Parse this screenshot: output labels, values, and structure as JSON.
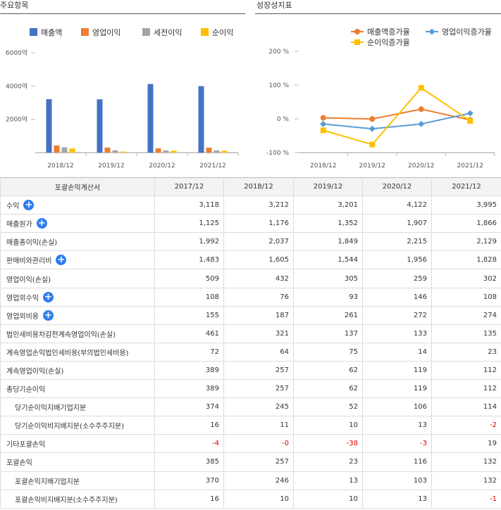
{
  "left_panel": {
    "title": "주요항목"
  },
  "right_panel": {
    "title": "성장성지표"
  },
  "chart_data": [
    {
      "type": "bar",
      "categories": [
        "2018/12",
        "2019/12",
        "2020/12",
        "2021/12"
      ],
      "ytick_labels": [
        "6000억",
        "4000억",
        "2000억"
      ],
      "yticks": [
        6000,
        4000,
        2000
      ],
      "ylim": [
        0,
        6000
      ],
      "legend_position": "top",
      "series": [
        {
          "name": "매출액",
          "color": "#4472c4",
          "values": [
            3212,
            3201,
            4122,
            3995
          ]
        },
        {
          "name": "영업이익",
          "color": "#ed7d31",
          "values": [
            432,
            305,
            259,
            302
          ]
        },
        {
          "name": "세전이익",
          "color": "#a5a5a5",
          "values": [
            321,
            137,
            133,
            135
          ]
        },
        {
          "name": "순이익",
          "color": "#ffc000",
          "values": [
            257,
            62,
            119,
            112
          ]
        }
      ]
    },
    {
      "type": "line",
      "categories": [
        "2018/12",
        "2019/12",
        "2020/12",
        "2021/12"
      ],
      "ytick_labels": [
        "200 %",
        "100 %",
        "0 %",
        "-100 %"
      ],
      "yticks": [
        200,
        100,
        0,
        -100
      ],
      "ylim": [
        -100,
        200
      ],
      "legend_position": "top",
      "series": [
        {
          "name": "매출액증가율",
          "color": "#ed7d31",
          "marker": "circle",
          "values": [
            3.0,
            -0.3,
            28.8,
            -3.1
          ]
        },
        {
          "name": "영업이익증가율",
          "color": "#5b9bd5",
          "marker": "diamond",
          "values": [
            -15.1,
            -29.4,
            -15.1,
            16.6
          ]
        },
        {
          "name": "순이익증가율",
          "color": "#ffc000",
          "marker": "square",
          "values": [
            -33.9,
            -75.9,
            91.9,
            -5.9
          ]
        }
      ]
    }
  ],
  "table": {
    "header": [
      "포괄손익계산서",
      "2017/12",
      "2018/12",
      "2019/12",
      "2020/12",
      "2021/12"
    ],
    "plus_symbol": "+",
    "rows": [
      {
        "label": "수익",
        "expand": true,
        "sub": false,
        "values": [
          "3,118",
          "3,212",
          "3,201",
          "4,122",
          "3,995"
        ]
      },
      {
        "label": "매출원가",
        "expand": true,
        "sub": false,
        "values": [
          "1,125",
          "1,176",
          "1,352",
          "1,907",
          "1,866"
        ]
      },
      {
        "label": "매출총이익(손실)",
        "expand": false,
        "sub": false,
        "values": [
          "1,992",
          "2,037",
          "1,849",
          "2,215",
          "2,129"
        ]
      },
      {
        "label": "판매비와관리비",
        "expand": true,
        "sub": false,
        "values": [
          "1,483",
          "1,605",
          "1,544",
          "1,956",
          "1,828"
        ]
      },
      {
        "label": "영업이익(손실)",
        "expand": false,
        "sub": false,
        "values": [
          "509",
          "432",
          "305",
          "259",
          "302"
        ]
      },
      {
        "label": "영업외수익",
        "expand": true,
        "sub": false,
        "values": [
          "108",
          "76",
          "93",
          "146",
          "108"
        ]
      },
      {
        "label": "영업외비용",
        "expand": true,
        "sub": false,
        "values": [
          "155",
          "187",
          "261",
          "272",
          "274"
        ]
      },
      {
        "label": "법인세비용차감전계속영업이익(손실)",
        "expand": false,
        "sub": false,
        "values": [
          "461",
          "321",
          "137",
          "133",
          "135"
        ]
      },
      {
        "label": "계속영업손익법인세비용(부의법인세비용)",
        "expand": false,
        "sub": false,
        "values": [
          "72",
          "64",
          "75",
          "14",
          "23"
        ]
      },
      {
        "label": "계속영업이익(손실)",
        "expand": false,
        "sub": false,
        "values": [
          "389",
          "257",
          "62",
          "119",
          "112"
        ]
      },
      {
        "label": "총당기순이익",
        "expand": false,
        "sub": false,
        "values": [
          "389",
          "257",
          "62",
          "119",
          "112"
        ]
      },
      {
        "label": "당기순이익지배기업지분",
        "expand": false,
        "sub": true,
        "values": [
          "374",
          "245",
          "52",
          "106",
          "114"
        ]
      },
      {
        "label": "당기순이익비지배지분(소수주주지분)",
        "expand": false,
        "sub": true,
        "values": [
          "16",
          "11",
          "10",
          "13",
          "-2"
        ]
      },
      {
        "label": "기타포괄손익",
        "expand": false,
        "sub": false,
        "values": [
          "-4",
          "-0",
          "-38",
          "-3",
          "19"
        ]
      },
      {
        "label": "포괄손익",
        "expand": false,
        "sub": false,
        "values": [
          "385",
          "257",
          "23",
          "116",
          "132"
        ]
      },
      {
        "label": "포괄손익지배기업지분",
        "expand": false,
        "sub": true,
        "values": [
          "370",
          "246",
          "13",
          "103",
          "132"
        ]
      },
      {
        "label": "포괄손익비지배지분(소수주주지분)",
        "expand": false,
        "sub": true,
        "values": [
          "16",
          "10",
          "10",
          "13",
          "-1"
        ]
      }
    ]
  }
}
